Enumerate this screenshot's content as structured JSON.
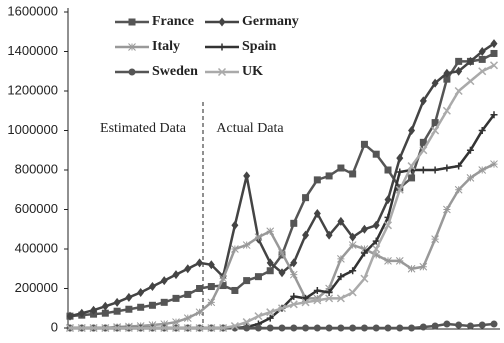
{
  "chart_data": {
    "type": "line",
    "annotations": [
      "Estimated Data",
      "Actual Data"
    ],
    "categories": [
      null,
      null,
      null,
      null,
      null,
      null,
      null,
      null,
      null,
      null,
      null,
      null,
      null,
      null,
      null,
      null,
      null,
      null,
      null,
      null,
      null,
      null,
      null,
      null,
      null,
      null,
      null,
      null,
      null,
      null,
      null,
      null,
      null,
      null,
      null,
      null,
      null
    ],
    "ylim": [
      0,
      1600000
    ],
    "yticks": [
      0,
      200000,
      400000,
      600000,
      800000,
      1000000,
      1200000,
      1400000,
      1600000
    ],
    "series": [
      {
        "name": "France",
        "color": "#555555",
        "marker": "square",
        "values": [
          60000,
          65000,
          70000,
          75000,
          85000,
          95000,
          105000,
          115000,
          130000,
          150000,
          170000,
          200000,
          210000,
          215000,
          190000,
          240000,
          260000,
          290000,
          370000,
          530000,
          660000,
          750000,
          770000,
          810000,
          780000,
          930000,
          880000,
          800000,
          710000,
          760000,
          940000,
          1040000,
          1260000,
          1350000,
          1350000,
          1360000,
          1390000
        ]
      },
      {
        "name": "Germany",
        "color": "#444444",
        "marker": "diamond",
        "values": [
          60000,
          75000,
          90000,
          110000,
          130000,
          155000,
          180000,
          210000,
          240000,
          270000,
          300000,
          330000,
          320000,
          260000,
          520000,
          770000,
          450000,
          330000,
          280000,
          330000,
          470000,
          580000,
          470000,
          540000,
          460000,
          500000,
          520000,
          650000,
          860000,
          1000000,
          1150000,
          1240000,
          1290000,
          1300000,
          1350000,
          1400000,
          1440000
        ]
      },
      {
        "name": "Italy",
        "color": "#999999",
        "marker": "star",
        "values": [
          0,
          0,
          0,
          0,
          5000,
          8000,
          10000,
          15000,
          20000,
          30000,
          50000,
          80000,
          130000,
          250000,
          400000,
          420000,
          460000,
          490000,
          380000,
          270000,
          150000,
          150000,
          200000,
          350000,
          420000,
          400000,
          370000,
          340000,
          340000,
          300000,
          310000,
          450000,
          600000,
          700000,
          760000,
          800000,
          830000
        ]
      },
      {
        "name": "Spain",
        "color": "#333333",
        "marker": "plus",
        "values": [
          0,
          0,
          0,
          0,
          0,
          0,
          0,
          0,
          0,
          0,
          0,
          0,
          0,
          0,
          0,
          5000,
          20000,
          50000,
          100000,
          160000,
          150000,
          190000,
          180000,
          260000,
          290000,
          380000,
          440000,
          560000,
          790000,
          800000,
          800000,
          800000,
          810000,
          820000,
          900000,
          1000000,
          1080000
        ]
      },
      {
        "name": "Sweden",
        "color": "#555555",
        "marker": "circle",
        "values": [
          0,
          0,
          0,
          0,
          0,
          0,
          0,
          0,
          0,
          0,
          0,
          0,
          0,
          0,
          0,
          0,
          0,
          0,
          0,
          0,
          0,
          0,
          0,
          0,
          0,
          0,
          0,
          0,
          0,
          0,
          5000,
          10000,
          20000,
          15000,
          10000,
          15000,
          20000
        ]
      },
      {
        "name": "UK",
        "color": "#aaaaaa",
        "marker": "x",
        "values": [
          0,
          0,
          0,
          0,
          0,
          0,
          0,
          0,
          0,
          0,
          0,
          0,
          0,
          0,
          10000,
          30000,
          60000,
          80000,
          100000,
          120000,
          130000,
          140000,
          150000,
          150000,
          180000,
          250000,
          400000,
          520000,
          700000,
          820000,
          900000,
          1000000,
          1100000,
          1200000,
          1250000,
          1300000,
          1330000
        ]
      }
    ]
  }
}
